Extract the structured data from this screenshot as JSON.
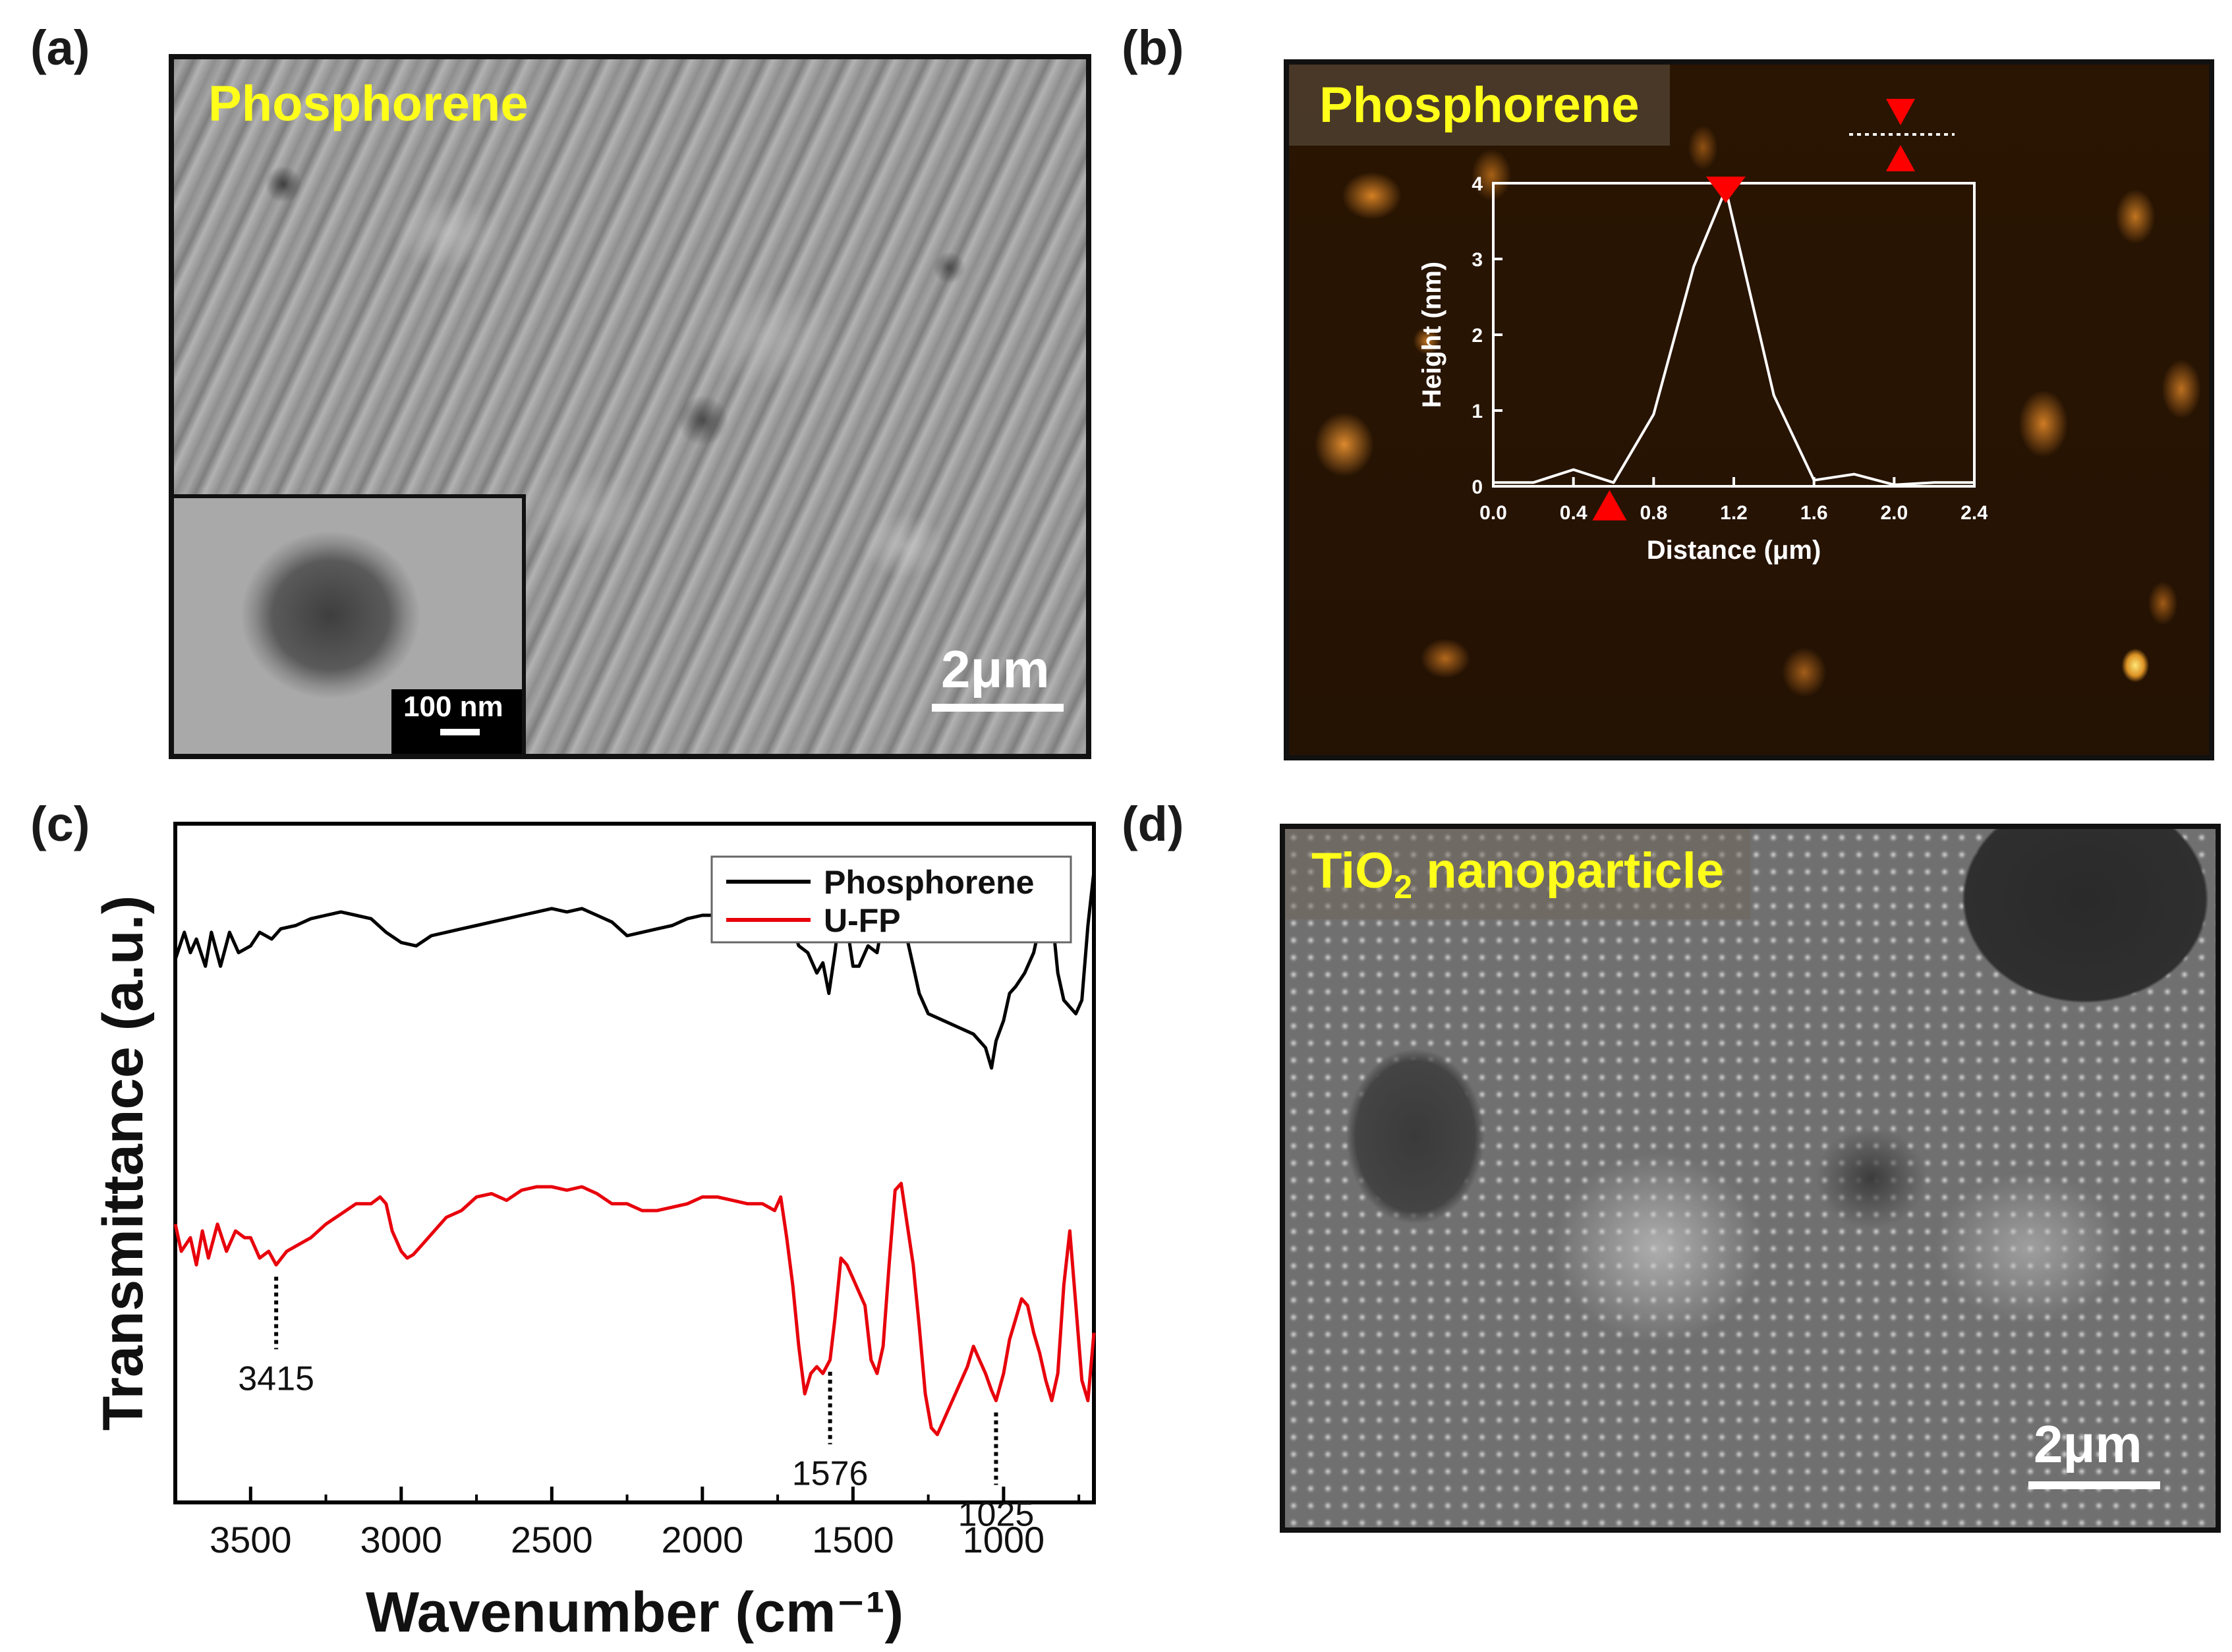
{
  "panel_a": {
    "letter": "(a)",
    "label": "Phosphorene",
    "scalebar": "2μm",
    "inset_scalebar": "100 nm"
  },
  "panel_b": {
    "letter": "(b)",
    "label": "Phosphorene",
    "inset_chart": {
      "type": "line",
      "xlabel": "Distance (μm)",
      "ylabel": "Height (nm)",
      "xlim": [
        0,
        2.4
      ],
      "ylim": [
        0,
        4
      ],
      "xticks": [
        "0.0",
        "0.4",
        "0.8",
        "1.2",
        "1.6",
        "2.0",
        "2.4"
      ],
      "yticks": [
        "0",
        "1",
        "2",
        "3",
        "4"
      ],
      "x": [
        0,
        0.2,
        0.4,
        0.6,
        0.8,
        1.0,
        1.16,
        1.4,
        1.6,
        1.8,
        2.0,
        2.2,
        2.4
      ],
      "y": [
        0.05,
        0.05,
        0.22,
        0.05,
        0.95,
        2.9,
        3.92,
        1.2,
        0.08,
        0.16,
        0.02,
        0.05,
        0.05
      ],
      "markers_x": [
        0.58,
        1.16
      ]
    }
  },
  "panel_c": {
    "letter": "(c)",
    "chart_data": {
      "type": "line",
      "xlabel": "Wavenumber (cm⁻¹)",
      "ylabel": "Transmittance (a.u.)",
      "xlim": [
        3750,
        700
      ],
      "xticks": [
        "3500",
        "3000",
        "2500",
        "2000",
        "1500",
        "1000"
      ],
      "xtick_values": [
        3500,
        3000,
        2500,
        2000,
        1500,
        1000
      ],
      "series": [
        {
          "name": "Phosphorene",
          "color": "#000000",
          "x": [
            3750,
            3720,
            3700,
            3680,
            3650,
            3630,
            3600,
            3570,
            3540,
            3500,
            3470,
            3430,
            3400,
            3350,
            3300,
            3250,
            3200,
            3150,
            3100,
            3050,
            3000,
            2950,
            2900,
            2850,
            2800,
            2750,
            2700,
            2650,
            2600,
            2550,
            2500,
            2450,
            2400,
            2350,
            2300,
            2250,
            2200,
            2150,
            2100,
            2050,
            2000,
            1950,
            1900,
            1850,
            1800,
            1760,
            1720,
            1700,
            1680,
            1650,
            1620,
            1600,
            1580,
            1560,
            1540,
            1520,
            1500,
            1480,
            1450,
            1420,
            1400,
            1380,
            1350,
            1320,
            1300,
            1280,
            1250,
            1200,
            1150,
            1100,
            1060,
            1040,
            1025,
            1000,
            980,
            960,
            930,
            900,
            880,
            860,
            850,
            840,
            820,
            800,
            780,
            760,
            740,
            720,
            700
          ],
          "y": [
            2.5,
            2.9,
            2.6,
            2.8,
            2.4,
            2.9,
            2.4,
            2.9,
            2.6,
            2.7,
            2.9,
            2.8,
            2.95,
            3.0,
            3.1,
            3.15,
            3.2,
            3.15,
            3.1,
            2.9,
            2.75,
            2.7,
            2.85,
            2.9,
            2.95,
            3.0,
            3.05,
            3.1,
            3.15,
            3.2,
            3.25,
            3.2,
            3.25,
            3.15,
            3.05,
            2.85,
            2.9,
            2.95,
            3.0,
            3.1,
            3.15,
            3.15,
            3.1,
            3.05,
            3.0,
            3.0,
            2.8,
            2.95,
            2.7,
            2.6,
            2.3,
            2.45,
            2.0,
            2.6,
            3.3,
            3.0,
            2.4,
            2.4,
            2.7,
            2.6,
            3.1,
            3.3,
            3.2,
            2.8,
            2.4,
            2.0,
            1.7,
            1.6,
            1.5,
            1.4,
            1.2,
            0.9,
            1.3,
            1.6,
            2.0,
            2.1,
            2.3,
            2.6,
            3.0,
            3.4,
            3.5,
            3.2,
            2.3,
            1.9,
            1.8,
            1.7,
            1.9,
            3.0,
            3.8
          ]
        },
        {
          "name": "U-FP",
          "color": "#e8000b",
          "x": [
            3750,
            3730,
            3700,
            3680,
            3660,
            3640,
            3610,
            3580,
            3550,
            3520,
            3500,
            3470,
            3440,
            3415,
            3380,
            3340,
            3300,
            3250,
            3200,
            3150,
            3100,
            3070,
            3050,
            3030,
            3000,
            2980,
            2960,
            2930,
            2900,
            2850,
            2800,
            2750,
            2700,
            2650,
            2600,
            2550,
            2500,
            2450,
            2400,
            2350,
            2300,
            2250,
            2200,
            2150,
            2100,
            2050,
            2000,
            1950,
            1900,
            1850,
            1800,
            1760,
            1740,
            1720,
            1700,
            1680,
            1660,
            1640,
            1620,
            1600,
            1576,
            1560,
            1540,
            1520,
            1500,
            1480,
            1460,
            1440,
            1420,
            1400,
            1380,
            1360,
            1340,
            1320,
            1300,
            1280,
            1260,
            1240,
            1220,
            1200,
            1180,
            1150,
            1120,
            1100,
            1080,
            1060,
            1040,
            1025,
            1000,
            980,
            960,
            940,
            920,
            900,
            880,
            860,
            840,
            820,
            800,
            780,
            760,
            740,
            720,
            700
          ],
          "y": [
            -1.4,
            -1.8,
            -1.6,
            -2.0,
            -1.5,
            -1.9,
            -1.4,
            -1.8,
            -1.5,
            -1.6,
            -1.6,
            -1.9,
            -1.8,
            -2.0,
            -1.8,
            -1.7,
            -1.6,
            -1.4,
            -1.25,
            -1.1,
            -1.1,
            -1.0,
            -1.1,
            -1.5,
            -1.8,
            -1.9,
            -1.85,
            -1.7,
            -1.55,
            -1.3,
            -1.2,
            -1.0,
            -0.95,
            -1.05,
            -0.9,
            -0.85,
            -0.85,
            -0.9,
            -0.85,
            -0.95,
            -1.1,
            -1.1,
            -1.2,
            -1.2,
            -1.15,
            -1.1,
            -1.0,
            -1.0,
            -1.05,
            -1.1,
            -1.1,
            -1.2,
            -1.0,
            -1.6,
            -2.3,
            -3.2,
            -3.9,
            -3.6,
            -3.5,
            -3.6,
            -3.4,
            -2.8,
            -1.9,
            -2.0,
            -2.2,
            -2.4,
            -2.6,
            -3.4,
            -3.6,
            -3.2,
            -2.0,
            -0.9,
            -0.8,
            -1.4,
            -2.0,
            -2.9,
            -3.9,
            -4.4,
            -4.5,
            -4.3,
            -4.1,
            -3.8,
            -3.5,
            -3.2,
            -3.4,
            -3.6,
            -3.85,
            -4.0,
            -3.6,
            -3.1,
            -2.8,
            -2.5,
            -2.6,
            -3.0,
            -3.3,
            -3.7,
            -4.0,
            -3.6,
            -2.3,
            -1.5,
            -2.6,
            -3.7,
            -4.0,
            -3.0
          ]
        }
      ],
      "ylim": [
        -5.5,
        4.5
      ],
      "annotations": [
        {
          "x": 3415,
          "text": "3415"
        },
        {
          "x": 1576,
          "text": "1576"
        },
        {
          "x": 1025,
          "text": "1025"
        }
      ]
    }
  },
  "panel_d": {
    "letter": "(d)",
    "label_main": "TiO",
    "label_sub": "2",
    "label_rest": " nanoparticle",
    "scalebar": "2μm"
  }
}
